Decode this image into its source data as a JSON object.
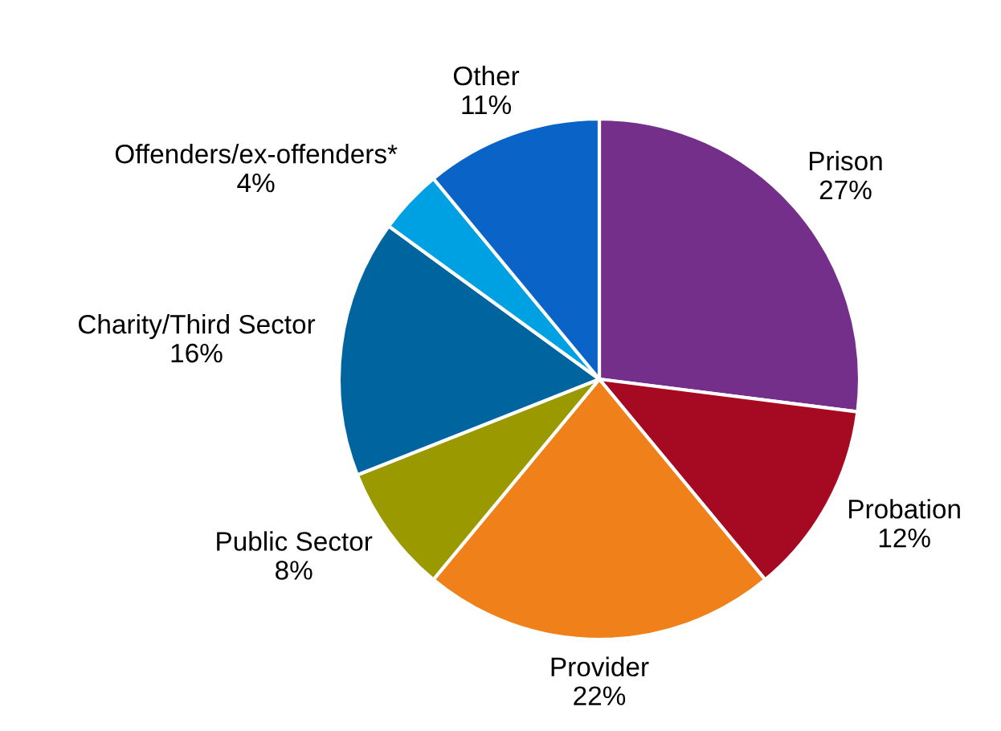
{
  "chart_data": {
    "type": "pie",
    "categories": [
      "Prison",
      "Probation",
      "Provider",
      "Public Sector",
      "Charity/Third Sector",
      "Offenders/ex-offenders*",
      "Other"
    ],
    "values": [
      27,
      12,
      22,
      8,
      16,
      4,
      11
    ],
    "value_labels": [
      "27%",
      "12%",
      "22%",
      "8%",
      "16%",
      "4%",
      "11%"
    ],
    "colors": [
      "#742f8b",
      "#a50a22",
      "#ef801a",
      "#9a9a00",
      "#00659f",
      "#00a1e2",
      "#0a64c8"
    ]
  }
}
